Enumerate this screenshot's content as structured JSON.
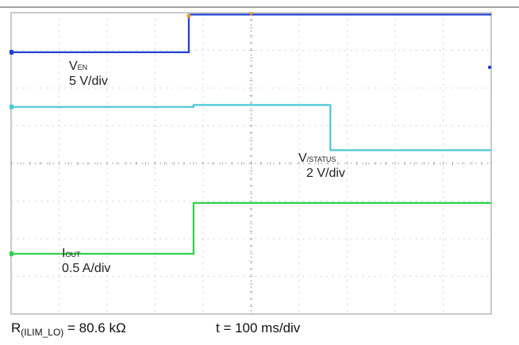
{
  "chart_data": {
    "type": "line",
    "divisions": {
      "x": 10,
      "y": 8
    },
    "grid": true,
    "series": [
      {
        "name": "VEN",
        "label_main": "V",
        "label_sub": "EN",
        "scale": "5 V/div",
        "color": "#1f3fd0",
        "points": [
          [
            0,
            6.95
          ],
          [
            3.7,
            6.95
          ],
          [
            3.7,
            7.95
          ],
          [
            10,
            7.95
          ]
        ]
      },
      {
        "name": "V/STATUS",
        "label_main": "V",
        "label_sub": "/STATUS",
        "scale": "2 V/div",
        "color": "#49c8d8",
        "points": [
          [
            0,
            5.5
          ],
          [
            3.8,
            5.5
          ],
          [
            3.8,
            5.55
          ],
          [
            6.65,
            5.55
          ],
          [
            6.65,
            4.35
          ],
          [
            10,
            4.35
          ]
        ]
      },
      {
        "name": "IOUT",
        "label_main": "I",
        "label_sub": "OUT",
        "scale": "0.5 A/div",
        "color": "#2ed14a",
        "points": [
          [
            0,
            1.6
          ],
          [
            3.8,
            1.6
          ],
          [
            3.8,
            2.95
          ],
          [
            10,
            2.95
          ]
        ]
      }
    ],
    "markers": {
      "trigger_color": "#f09a2a",
      "ch1_color": "#1f3fd0",
      "ch2_color": "#49c8d8",
      "ch3_color": "#2ed14a"
    }
  },
  "caption": {
    "r_main": "R",
    "r_sub": "(ILIM_LO)",
    "r_value": " = 80.6 kΩ",
    "timebase": "t = 100 ms/div"
  }
}
